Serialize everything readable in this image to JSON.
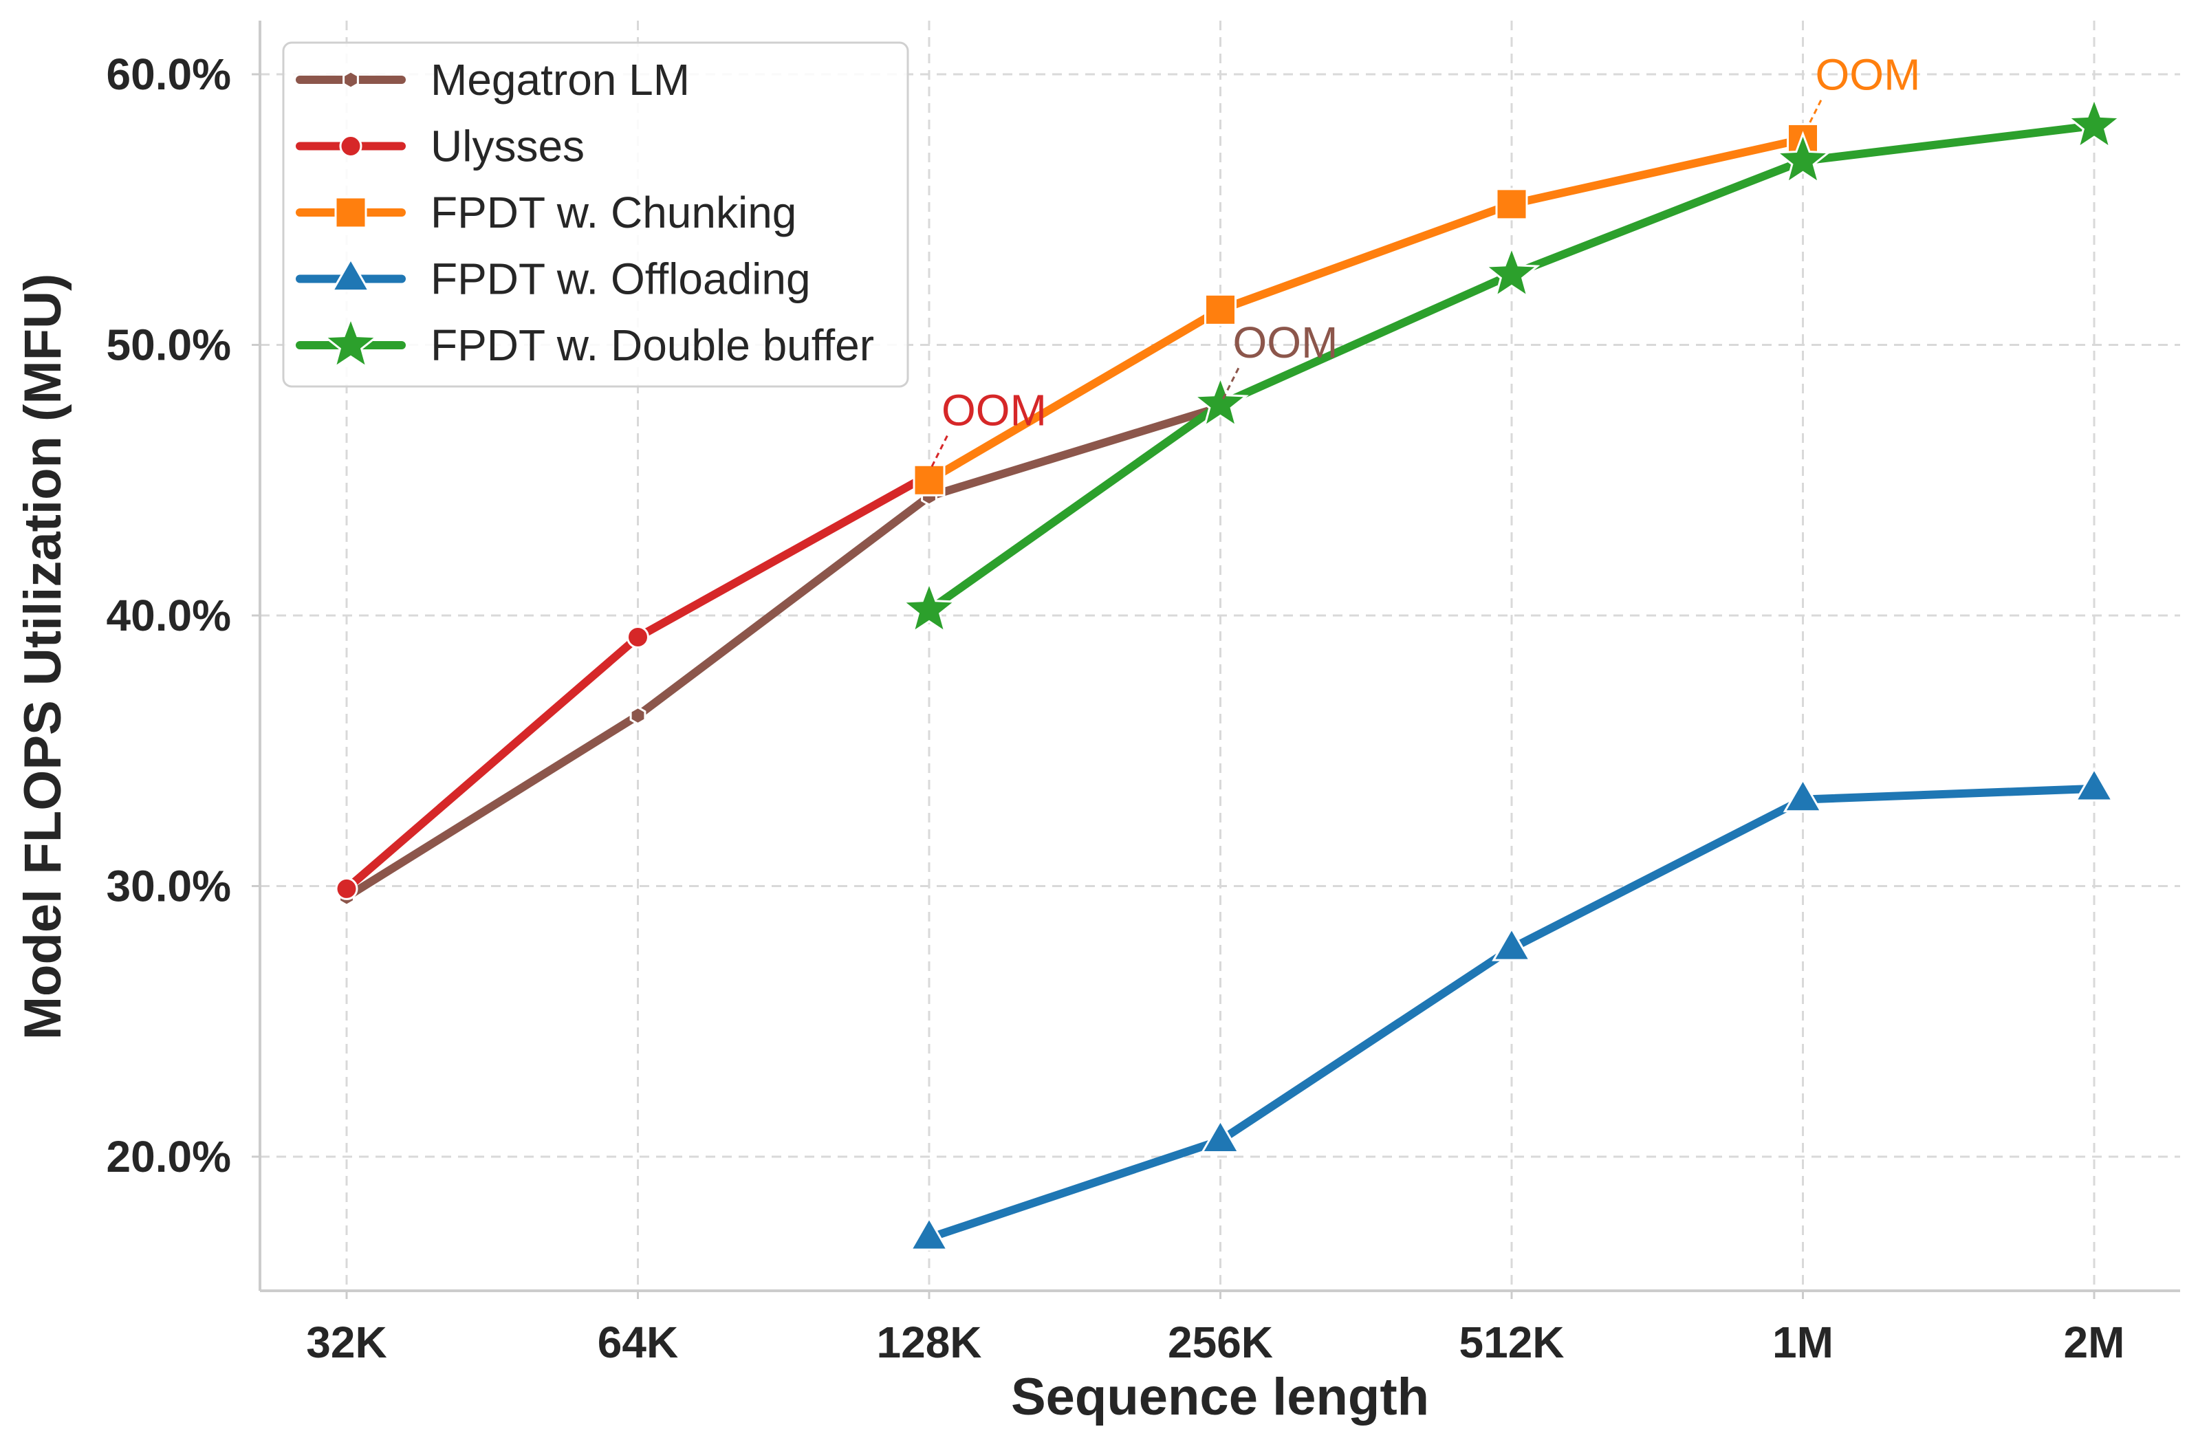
{
  "chart_data": {
    "type": "line",
    "title": "",
    "xlabel": "Sequence length",
    "ylabel": "Model FLOPS Utilization (MFU)",
    "categories": [
      "32K",
      "64K",
      "128K",
      "256K",
      "512K",
      "1M",
      "2M"
    ],
    "y_ticks": [
      20.0,
      30.0,
      40.0,
      50.0,
      60.0
    ],
    "y_tick_labels": [
      "20.0%",
      "30.0%",
      "40.0%",
      "50.0%",
      "60.0%"
    ],
    "ylim": [
      15.0,
      61.5
    ],
    "grid": true,
    "legend_position": "top-left",
    "series": [
      {
        "name": "Megatron LM",
        "color": "#8c564b",
        "marker": "hexagon",
        "values": [
          29.6,
          36.3,
          44.4,
          47.7,
          null,
          null,
          null
        ]
      },
      {
        "name": "Ulysses",
        "color": "#d62728",
        "marker": "circle",
        "values": [
          29.9,
          39.2,
          45.2,
          null,
          null,
          null,
          null
        ]
      },
      {
        "name": "FPDT w. Chunking",
        "color": "#ff7f0e",
        "marker": "square",
        "values": [
          null,
          null,
          45.0,
          51.3,
          55.2,
          57.6,
          null
        ]
      },
      {
        "name": "FPDT w. Offloading",
        "color": "#1f77b4",
        "marker": "triangle",
        "values": [
          null,
          null,
          17.0,
          20.6,
          27.7,
          33.2,
          33.6
        ]
      },
      {
        "name": "FPDT w. Double buffer",
        "color": "#2ca02c",
        "marker": "star",
        "values": [
          null,
          null,
          40.2,
          47.8,
          52.6,
          56.8,
          58.1
        ]
      }
    ],
    "annotations": [
      {
        "text": "OOM",
        "color": "#d62728",
        "x": "128K",
        "y": 45.2
      },
      {
        "text": "OOM",
        "color": "#8c564b",
        "x": "256K",
        "y": 47.7
      },
      {
        "text": "OOM",
        "color": "#ff7f0e",
        "x": "1M",
        "y": 57.6
      }
    ]
  }
}
